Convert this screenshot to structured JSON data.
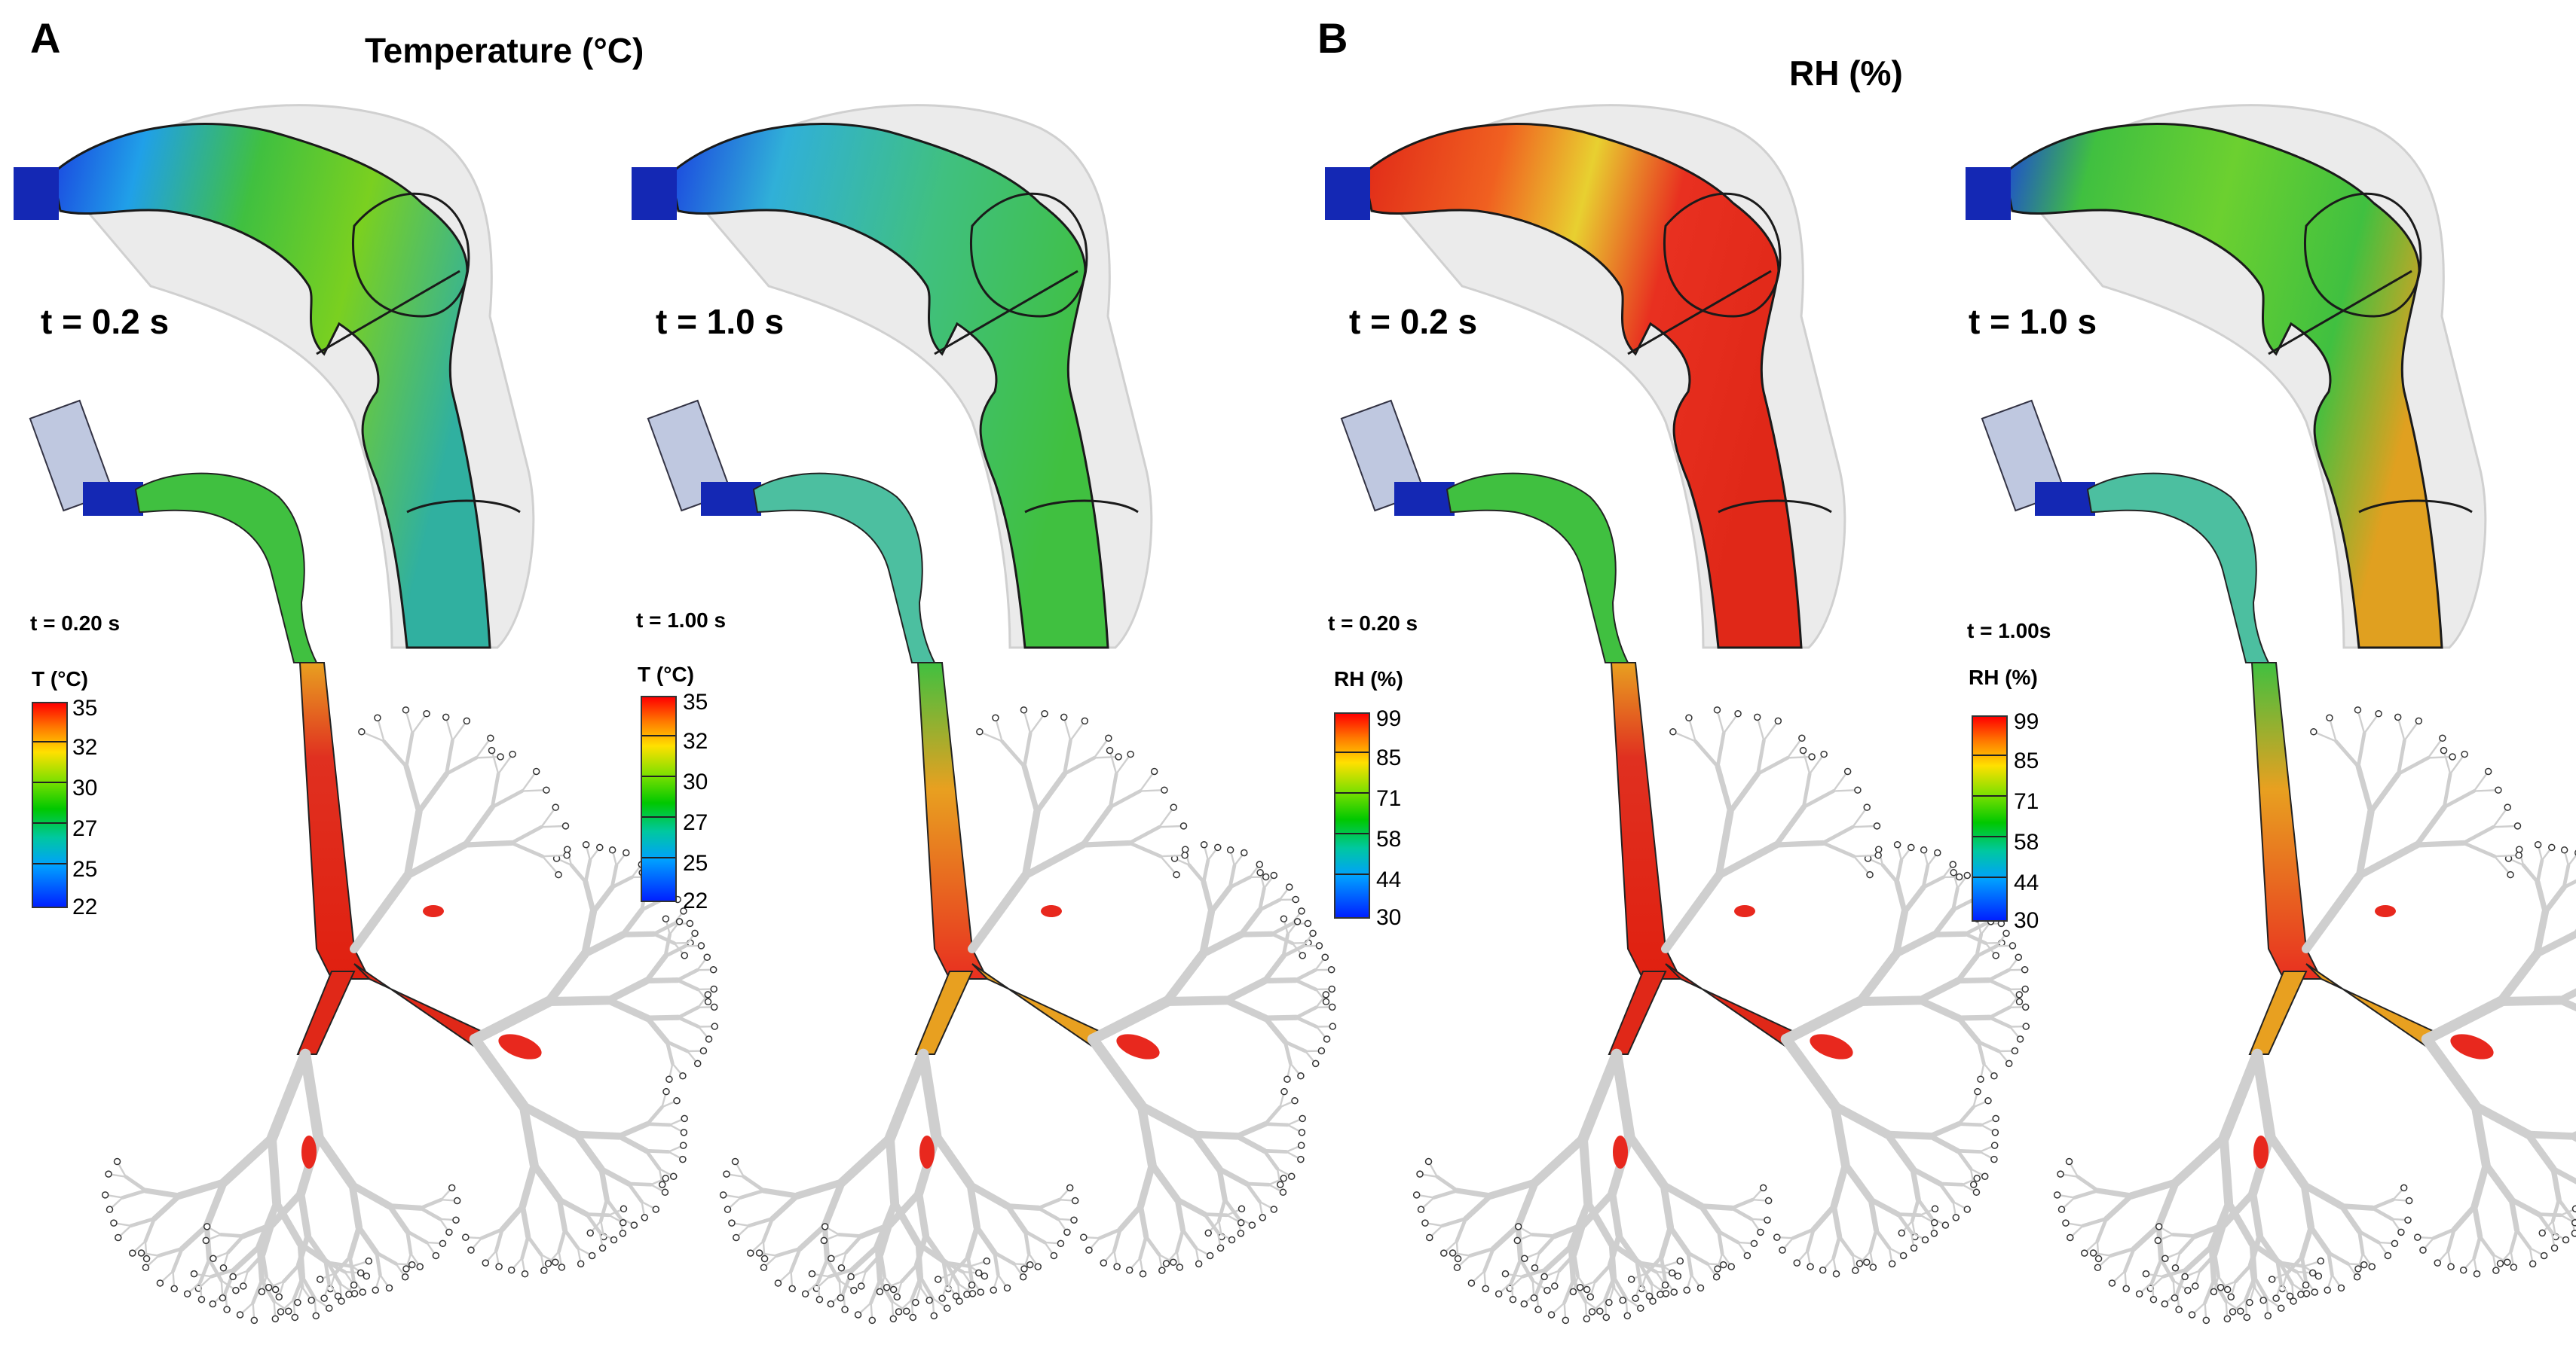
{
  "panels": [
    {
      "letter": "A",
      "title": "Temperature (°C)",
      "columns": [
        {
          "time_big": "t = 0.2 s",
          "time_small": "t = 0.20 s"
        },
        {
          "time_big": "t = 1.0 s",
          "time_small": "t = 1.00 s"
        }
      ],
      "legend": {
        "title": "T (°C)",
        "ticks": [
          "35",
          "32",
          "30",
          "27",
          "25",
          "22"
        ]
      }
    },
    {
      "letter": "B",
      "title": "RH (%)",
      "columns": [
        {
          "time_big": "t = 0.2 s",
          "time_small": "t = 0.20 s"
        },
        {
          "time_big": "t = 1.0 s",
          "time_small": "t = 1.00s"
        }
      ],
      "legend": {
        "title": "RH (%)",
        "ticks": [
          "99",
          "85",
          "71",
          "58",
          "44",
          "30"
        ]
      }
    }
  ],
  "colors": {
    "hot": "#e8281e",
    "warm": "#f08a1e",
    "mid": "#3cc43c",
    "cool": "#1ea0e0",
    "inlet": "#1428b4",
    "tree": "#d0d0d0"
  }
}
